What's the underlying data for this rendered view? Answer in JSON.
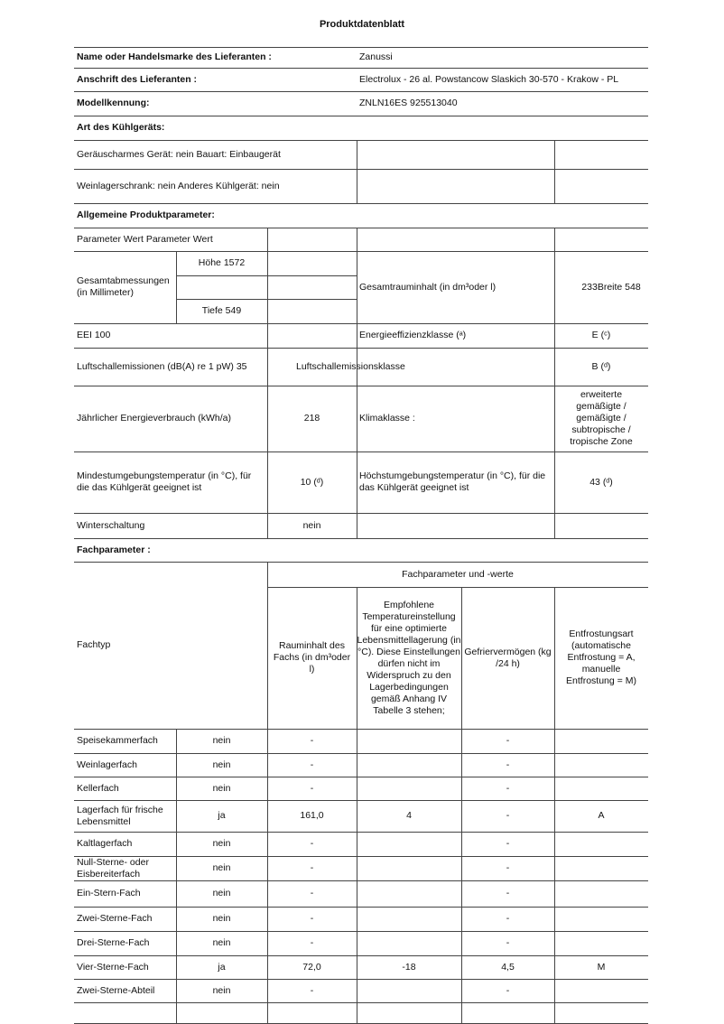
{
  "title": "Produktdatenblatt",
  "supplier": {
    "label": "Name oder Handelsmarke des Lieferanten :",
    "value": "Zanussi"
  },
  "address": {
    "label": "Anschrift des Lieferanten :",
    "value": "Electrolux - 26 al. Powstancow Slaskich 30-570 - Krakow - PL"
  },
  "model": {
    "label": "Modellkennung:",
    "value": "ZNLN16ES 925513040"
  },
  "type_section": {
    "heading": "Art des Kühlgeräts:",
    "row1": "Geräuscharmes Gerät: nein Bauart: Einbaugerät",
    "row2": "Weinlagerschrank: nein Anderes Kühlgerät: nein"
  },
  "general": {
    "heading": "Allgemeine Produktparameter:",
    "param_header": "Parameter Wert Parameter Wert",
    "dimensions_label": "Gesamtabmessungen (in Millimeter)",
    "height": "Höhe 1572",
    "depth": "Tiefe 549",
    "volume_label": "Gesamtrauminhalt (in dm³oder l)",
    "volume_value": "233Breite 548",
    "eei": "EEI 100",
    "energy_class_label": "Energieeffizienzklasse (ᵃ)",
    "energy_class_value": "E (ᶜ)",
    "noise_label": "Luftschallemissionen (dB(A) re 1 pW) 35",
    "noise_class_label": "Luftschallemissionsklasse",
    "noise_class_value": "B (ᵈ)",
    "annual_energy_label": "Jährlicher Energieverbrauch (kWh/a)",
    "annual_energy_value": "218",
    "climate_label": "Klimaklasse :",
    "climate_value": "erweiterte gemäßigte / gemäßigte / subtropische / tropische Zone",
    "min_temp_label": "Mindestumgebungstemperatur (in °C), für die das Kühlgerät geeignet ist",
    "min_temp_value": "10 (ᵈ)",
    "max_temp_label": "Höchstumgebungstemperatur (in °C), für die das Kühlgerät geeignet ist",
    "max_temp_value": "43 (ᵈ)",
    "winter_label": "Winterschaltung",
    "winter_value": "nein"
  },
  "compartments": {
    "heading": "Fachparameter :",
    "group_header": "Fachparameter und -werte",
    "col_type": "Fachtyp",
    "col_volume": "Rauminhalt des Fachs (in dm³oder l)",
    "col_temp": "Empfohlene Temperatureinstellung für eine optimierte Lebensmittellagerung (in °C). Diese Einstellungen dürfen nicht im Widerspruch zu den Lagerbedingungen gemäß Anhang IV Tabelle 3 stehen;",
    "col_freeze": "Gefriervermögen (kg /24 h)",
    "col_defrost": "Entfrostungsart (automatische Entfrostung = A, manuelle Entfrostung = M)",
    "rows": [
      {
        "type": "Speisekammerfach",
        "present": "nein",
        "volume": "-",
        "temp": "",
        "freeze": "-",
        "defrost": ""
      },
      {
        "type": "Weinlagerfach",
        "present": "nein",
        "volume": "-",
        "temp": "",
        "freeze": "-",
        "defrost": ""
      },
      {
        "type": "Kellerfach",
        "present": "nein",
        "volume": "-",
        "temp": "",
        "freeze": "-",
        "defrost": ""
      },
      {
        "type": "Lagerfach für frische Lebensmittel",
        "present": "ja",
        "volume": "161,0",
        "temp": "4",
        "freeze": "-",
        "defrost": "A"
      },
      {
        "type": "Kaltlagerfach",
        "present": "nein",
        "volume": "-",
        "temp": "",
        "freeze": "-",
        "defrost": ""
      },
      {
        "type": "Null-Sterne- oder Eisbereiterfach",
        "present": "nein",
        "volume": "-",
        "temp": "",
        "freeze": "-",
        "defrost": ""
      },
      {
        "type": "Ein-Stern-Fach",
        "present": "nein",
        "volume": "-",
        "temp": "",
        "freeze": "-",
        "defrost": ""
      },
      {
        "type": "Zwei-Sterne-Fach",
        "present": "nein",
        "volume": "-",
        "temp": "",
        "freeze": "-",
        "defrost": ""
      },
      {
        "type": "Drei-Sterne-Fach",
        "present": "nein",
        "volume": "-",
        "temp": "",
        "freeze": "-",
        "defrost": ""
      },
      {
        "type": "Vier-Sterne-Fach",
        "present": "ja",
        "volume": "72,0",
        "temp": "-18",
        "freeze": "4,5",
        "defrost": "M"
      },
      {
        "type": "Zwei-Sterne-Abteil",
        "present": "nein",
        "volume": "-",
        "temp": "",
        "freeze": "-",
        "defrost": ""
      }
    ]
  }
}
